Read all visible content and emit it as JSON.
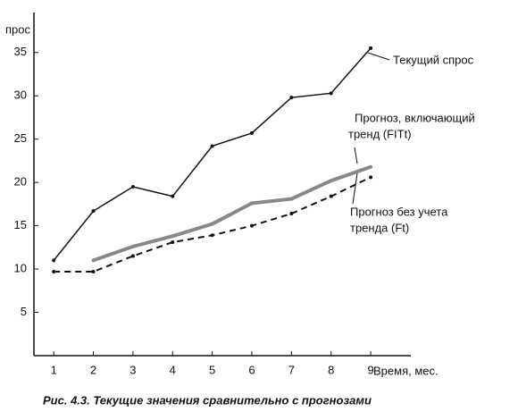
{
  "chart_data": {
    "type": "line",
    "y_label": "прос",
    "x_label": "Время, мес.",
    "caption": "Рис. 4.3. Текущие значения сравнительно с прогнозами",
    "x": [
      1,
      2,
      3,
      4,
      5,
      6,
      7,
      8,
      9
    ],
    "xlim": [
      0.5,
      9.9
    ],
    "xticks": [
      1,
      2,
      3,
      4,
      5,
      6,
      7,
      8,
      9
    ],
    "ylim": [
      0,
      39
    ],
    "yticks": [
      5,
      10,
      15,
      20,
      25,
      30,
      35
    ],
    "grid": false,
    "series": [
      {
        "color": "#111111",
        "style": "solid",
        "values": [
          11,
          16.7,
          19.5,
          18.4,
          24.2,
          25.7,
          29.8,
          30.3,
          35.5
        ]
      },
      {
        "color": "#888888",
        "style": "thick",
        "values": [
          null,
          11,
          12.6,
          13.8,
          15.2,
          17.6,
          18.1,
          20.2,
          21.8
        ]
      },
      {
        "color": "#111111",
        "style": "dashed",
        "values": [
          9.7,
          9.7,
          11.5,
          13.1,
          13.9,
          15,
          16.4,
          18.4,
          20.6
        ]
      }
    ],
    "annotations": [
      "Текущий спрос",
      "Прогноз, включающий",
      "тренд (FITt)",
      "Прогноз без учета",
      "тренда (Ft)"
    ]
  }
}
